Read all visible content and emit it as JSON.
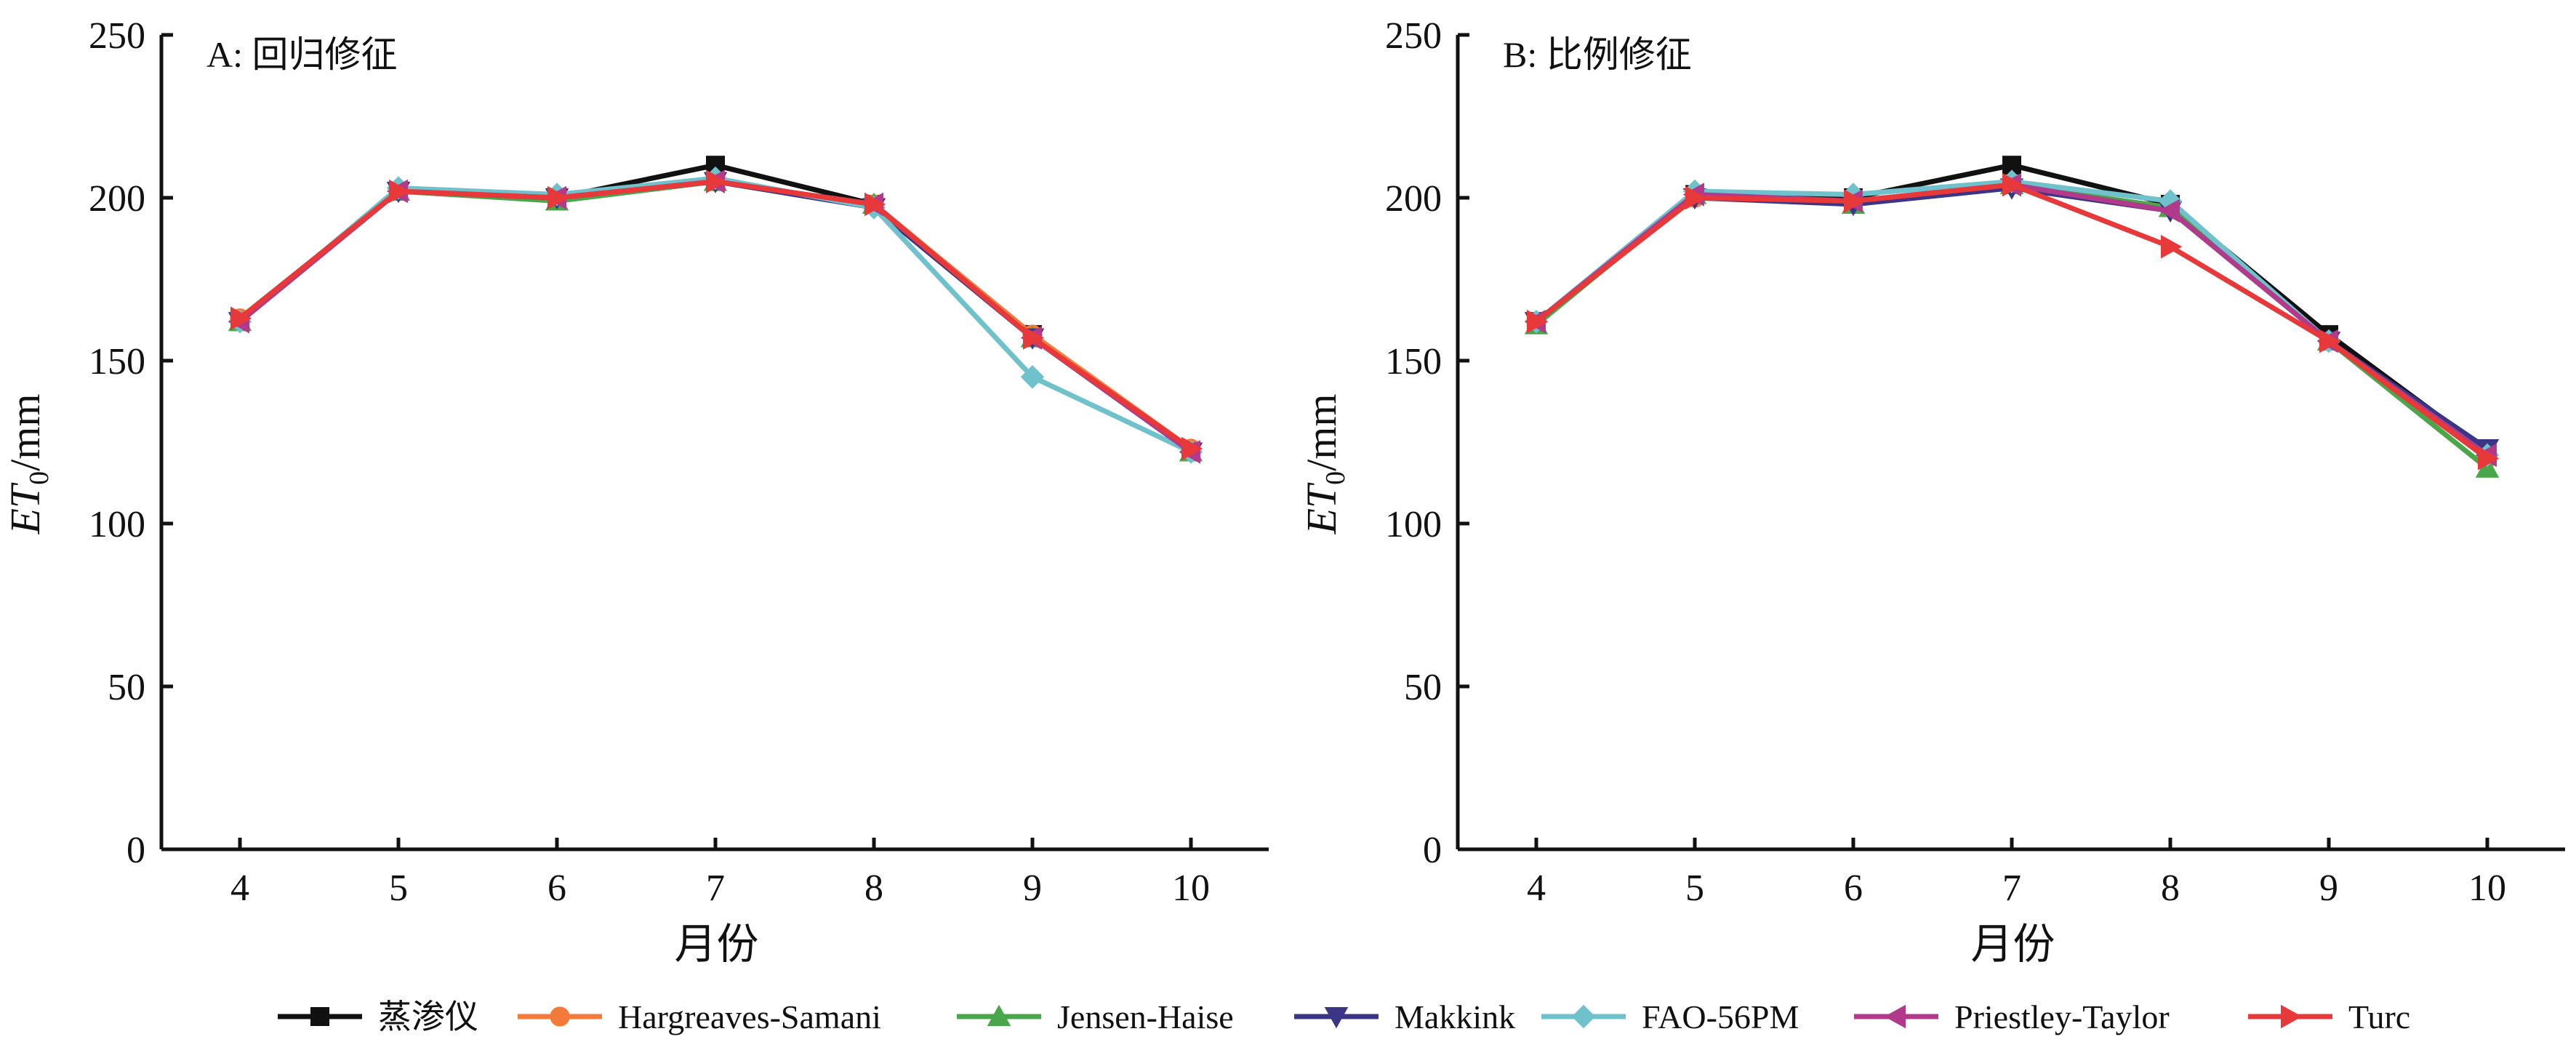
{
  "chart_data": [
    {
      "type": "line",
      "panel_label": "A: 回归修征",
      "xlabel": "月份",
      "ylabel": "ET0/mm",
      "ylabel_main": "ET",
      "ylabel_sub": "0",
      "ylabel_unit": "/mm",
      "categories": [
        "4",
        "5",
        "6",
        "7",
        "8",
        "9",
        "10"
      ],
      "ylim": [
        0,
        250
      ],
      "yticks": [
        0,
        50,
        100,
        150,
        200,
        250
      ],
      "series": [
        {
          "name": "蒸渗仪",
          "color": "#111111",
          "marker": "square",
          "values": [
            162,
            202,
            200,
            210,
            198,
            158,
            122
          ]
        },
        {
          "name": "Hargreaves-Samani",
          "color": "#f47a3a",
          "marker": "circle",
          "values": [
            163,
            202,
            200,
            205,
            198,
            158,
            123
          ]
        },
        {
          "name": "Jensen-Haise",
          "color": "#4aa64a",
          "marker": "triangle-up",
          "values": [
            162,
            202,
            199,
            205,
            198,
            157,
            122
          ]
        },
        {
          "name": "Makkink",
          "color": "#3b3585",
          "marker": "triangle-down",
          "values": [
            162,
            202,
            200,
            205,
            197,
            157,
            122
          ]
        },
        {
          "name": "FAO-56PM",
          "color": "#6fc2cc",
          "marker": "diamond",
          "values": [
            162,
            203,
            201,
            206,
            197,
            145,
            122
          ]
        },
        {
          "name": "Priestley-Taylor",
          "color": "#b23a8a",
          "marker": "triangle-left",
          "values": [
            162,
            202,
            200,
            205,
            198,
            157,
            122
          ]
        },
        {
          "name": "Turc",
          "color": "#e8393a",
          "marker": "triangle-right",
          "values": [
            163,
            202,
            200,
            205,
            198,
            157,
            123
          ]
        }
      ]
    },
    {
      "type": "line",
      "panel_label": "B: 比例修征",
      "xlabel": "月份",
      "ylabel": "ET0/mm",
      "ylabel_main": "ET",
      "ylabel_sub": "0",
      "ylabel_unit": "/mm",
      "categories": [
        "4",
        "5",
        "6",
        "7",
        "8",
        "9",
        "10"
      ],
      "ylim": [
        0,
        250
      ],
      "yticks": [
        0,
        50,
        100,
        150,
        200,
        250
      ],
      "series": [
        {
          "name": "蒸渗仪",
          "color": "#111111",
          "marker": "square",
          "values": [
            162,
            201,
            200,
            210,
            198,
            158,
            122
          ]
        },
        {
          "name": "Hargreaves-Samani",
          "color": "#f47a3a",
          "marker": "circle",
          "values": [
            162,
            200,
            199,
            204,
            197,
            156,
            120
          ]
        },
        {
          "name": "Jensen-Haise",
          "color": "#4aa64a",
          "marker": "triangle-up",
          "values": [
            161,
            201,
            198,
            204,
            197,
            156,
            117
          ]
        },
        {
          "name": "Makkink",
          "color": "#3b3585",
          "marker": "triangle-down",
          "values": [
            162,
            200,
            198,
            203,
            196,
            156,
            123
          ]
        },
        {
          "name": "FAO-56PM",
          "color": "#6fc2cc",
          "marker": "diamond",
          "values": [
            162,
            202,
            201,
            205,
            199,
            156,
            121
          ]
        },
        {
          "name": "Priestley-Taylor",
          "color": "#b23a8a",
          "marker": "triangle-left",
          "values": [
            162,
            201,
            199,
            204,
            196,
            156,
            121
          ]
        },
        {
          "name": "Turc",
          "color": "#e8393a",
          "marker": "triangle-right",
          "values": [
            162,
            200,
            199,
            204,
            185,
            156,
            120
          ]
        }
      ]
    }
  ],
  "legend": {
    "position": "bottom",
    "items": [
      "蒸渗仪",
      "Hargreaves-Samani",
      "Jensen-Haise",
      "Makkink",
      "FAO-56PM",
      "Priestley-Taylor",
      "Turc"
    ]
  }
}
